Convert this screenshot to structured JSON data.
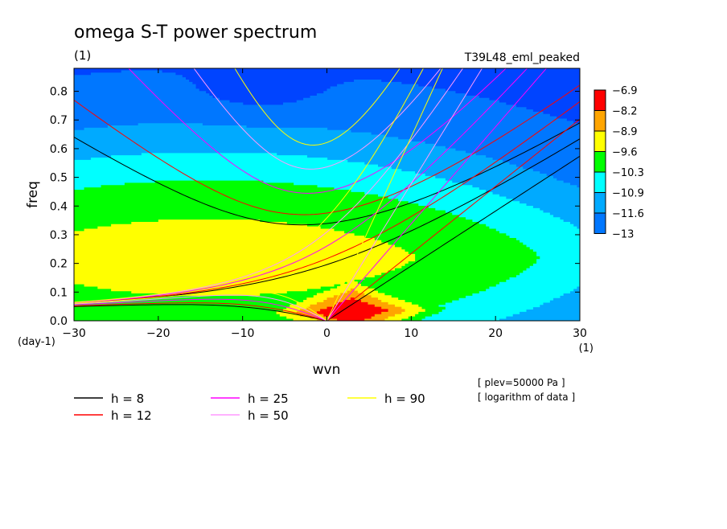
{
  "chart_data": {
    "type": "heatmap",
    "title": "omega S-T power spectrum",
    "subtitle": "(1)",
    "run_label": "T39L48_eml_peaked",
    "xlabel": "wvn",
    "ylabel": "freq",
    "x_unit": "(1)",
    "y_unit": "(day-1)",
    "xlim": [
      -30,
      30
    ],
    "ylim": [
      0,
      0.88
    ],
    "x_ticks": [
      -30,
      -20,
      -10,
      0,
      10,
      20,
      30
    ],
    "y_ticks": [
      0.0,
      0.1,
      0.2,
      0.3,
      0.4,
      0.5,
      0.6,
      0.7,
      0.8
    ],
    "colorbar": {
      "levels": [
        "-6.9",
        "-8.2",
        "-8.9",
        "-9.6",
        "-10.3",
        "-10.9",
        "-11.6",
        "-13"
      ],
      "colors": [
        "#ff0000",
        "#ffa500",
        "#ffff00",
        "#00ff00",
        "#00ffff",
        "#00aaff",
        "#0077ff"
      ]
    },
    "background_color": "#0044ff",
    "field": {
      "description_levels": [
        -6.9,
        -8.2,
        -8.9,
        -9.6,
        -10.3,
        -10.9,
        -11.6,
        -13
      ],
      "peak_x": 3,
      "peak_y": 0.03
    },
    "series": [
      {
        "name": "h = 8",
        "h": 8,
        "color": "#000000"
      },
      {
        "name": "h = 12",
        "h": 12,
        "color": "#ff0000"
      },
      {
        "name": "h = 25",
        "h": 25,
        "color": "#ff00ff"
      },
      {
        "name": "h = 50",
        "h": 50,
        "color": "#ff99ff"
      },
      {
        "name": "h = 90",
        "h": 90,
        "color": "#ffff00"
      }
    ],
    "notes": [
      "[ plev=50000 Pa ]",
      "[ logarithm of data ]"
    ]
  }
}
